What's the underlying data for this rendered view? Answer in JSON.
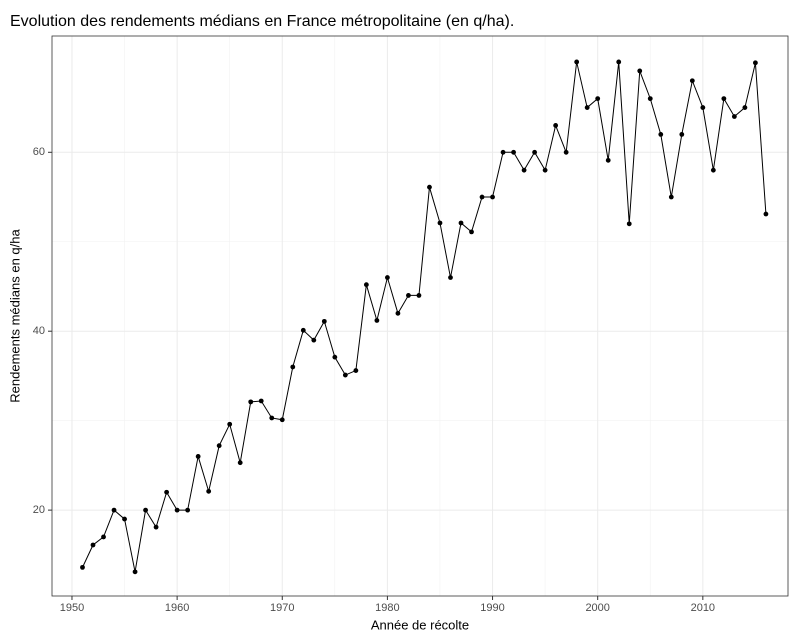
{
  "chart_data": {
    "type": "line",
    "title": "Evolution des rendements médians en France métropolitaine (en q/ha).",
    "xlabel": "Année de récolte",
    "ylabel": "Rendements médians en q/ha",
    "x": [
      1951,
      1952,
      1953,
      1954,
      1955,
      1956,
      1957,
      1958,
      1959,
      1960,
      1961,
      1962,
      1963,
      1964,
      1965,
      1966,
      1967,
      1968,
      1969,
      1970,
      1971,
      1972,
      1973,
      1974,
      1975,
      1976,
      1977,
      1978,
      1979,
      1980,
      1981,
      1982,
      1983,
      1984,
      1985,
      1986,
      1987,
      1988,
      1989,
      1990,
      1991,
      1992,
      1993,
      1994,
      1995,
      1996,
      1997,
      1998,
      1999,
      2000,
      2001,
      2002,
      2003,
      2004,
      2005,
      2006,
      2007,
      2008,
      2009,
      2010,
      2011,
      2012,
      2013,
      2014,
      2015,
      2016
    ],
    "series": [
      {
        "name": "Rendement",
        "color": "#000000",
        "values": [
          13.6,
          16.1,
          17,
          20,
          19,
          13.1,
          20,
          18.1,
          22,
          20,
          20,
          26,
          22.1,
          27.2,
          29.6,
          25.3,
          32.1,
          32.2,
          30.3,
          30.1,
          36,
          40.1,
          39,
          41.1,
          37.1,
          35.1,
          35.6,
          45.2,
          41.2,
          46,
          42,
          44,
          44,
          56.1,
          52.1,
          46,
          52.1,
          51.1,
          55,
          55,
          60,
          60,
          58,
          60,
          58,
          63,
          60,
          70.1,
          65,
          66,
          59.1,
          70.1,
          52,
          69.1,
          66,
          62,
          55,
          62,
          68,
          65,
          58,
          66,
          64,
          65,
          70,
          53.1
        ]
      }
    ],
    "xlim": [
      1948.1,
      2018.1
    ],
    "ylim": [
      10.4,
      73
    ],
    "xticks": [
      1950,
      1960,
      1970,
      1980,
      1990,
      2000,
      2010
    ],
    "yticks": [
      20,
      40,
      60
    ],
    "grid": true
  }
}
